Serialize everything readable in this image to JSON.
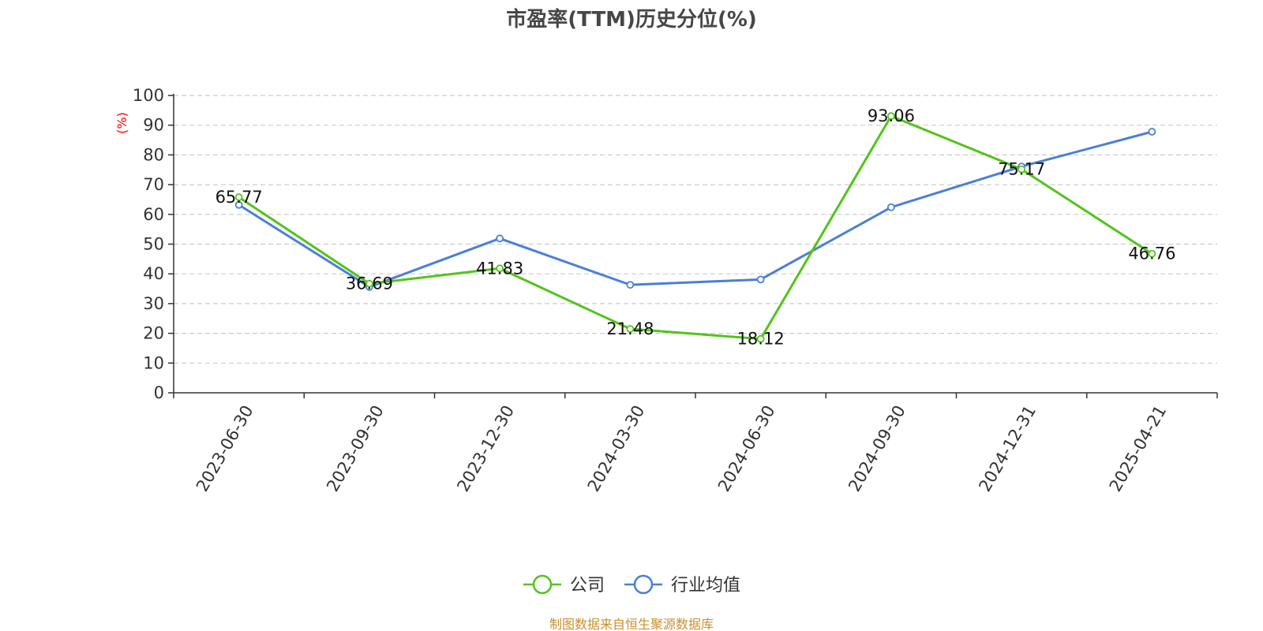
{
  "chart_data": {
    "type": "line",
    "title": "市盈率(TTM)历史分位(%)",
    "y_unit_label": "(%)",
    "categories": [
      "2023-06-30",
      "2023-09-30",
      "2023-12-30",
      "2024-03-30",
      "2024-06-30",
      "2024-09-30",
      "2024-12-31",
      "2025-04-21"
    ],
    "ylim": [
      0,
      100
    ],
    "yticks": [
      0,
      10,
      20,
      30,
      40,
      50,
      60,
      70,
      80,
      90,
      100
    ],
    "grid": true,
    "legend_position": "bottom-center",
    "series": [
      {
        "name": "公司",
        "color": "#52c41a",
        "values": [
          65.77,
          36.69,
          41.83,
          21.48,
          18.12,
          93.06,
          75.17,
          46.76
        ],
        "labels": [
          "65.77",
          "36.69",
          "41.83",
          "21.48",
          "18.12",
          "93.06",
          "75.17",
          "46.76"
        ]
      },
      {
        "name": "行业均值",
        "color": "#4a7fd9",
        "values": [
          63.2,
          35.6,
          51.9,
          36.3,
          38.1,
          62.4,
          76.1,
          87.8
        ]
      }
    ]
  },
  "source": "制图数据来自恒生聚源数据库"
}
